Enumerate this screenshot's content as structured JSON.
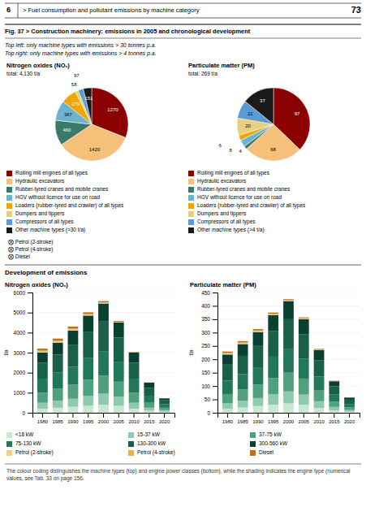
{
  "header": [
    "6",
    "> Fuel consumption and pollutant emissions by machine category",
    "73"
  ],
  "title": "Fig. 37   > Construction machinery: emissions in 2005 and chronological development",
  "subtitle": [
    "Top left: only machine types with emissions > 30 tonnes p.a.",
    "Top right: only machine types with emissions > 4 tonnes p.a."
  ],
  "section_title": "Development of emissions",
  "footer": "The colour coding distinguishes the machine types (top) and engine power classes (bottom), while the shading indicates the engine type (numerical values, see Tab. 33 on page 156.",
  "chart_data": [
    {
      "type": "pie",
      "title": "Nitrogen oxides (NOₓ)",
      "subtitle": "total: 4,130 t/a",
      "categories": [
        "Rolling mill engines of all types",
        "Hydraulic excavators",
        "Rubber-tyred cranes and mobile cranes",
        "HGV without licence for use on road",
        "Loaders (rubber-tyred and crawler) of all types",
        "Dumpers and tippers",
        "Compressors of all types",
        "Other machine types (>30 t/a)"
      ],
      "values": [
        1270,
        1420,
        460,
        367,
        279,
        58,
        97,
        151
      ],
      "colors": [
        "#8b0000",
        "#f5c07a",
        "#3a7a6a",
        "#6db3d0",
        "#f0a500",
        "#e8d080",
        "#5b9bd5",
        "#1a1a1a"
      ],
      "data_labels": true,
      "legend": "bottom",
      "annotations": [
        "⨂ Petrol (2-stroke)",
        "⨂ Petrol (4-stroke)",
        "⨂ Diesel"
      ]
    },
    {
      "type": "pie",
      "title": "Particulate matter (PM)",
      "subtitle": "total: 269 t/a",
      "categories": [
        "Rolling mill engines of all types",
        "Hydraulic excavators",
        "Rubber-tyred cranes and mobile cranes",
        "HGV without licence for use on road",
        "Loaders (rubber-tyred and crawler) of all types",
        "Dumpers and tippers",
        "Compressors of all types",
        "Other machine types (>4 t/a)"
      ],
      "values": [
        97,
        68,
        4,
        8,
        6,
        20,
        21,
        37
      ],
      "colors": [
        "#8b0000",
        "#f5c07a",
        "#3a7a6a",
        "#6db3d0",
        "#f0a500",
        "#e8d080",
        "#5b9bd5",
        "#1a1a1a"
      ],
      "data_labels": true,
      "legend": "bottom"
    },
    {
      "type": "bar",
      "stacked": true,
      "title": "Nitrogen oxides (NOₓ)",
      "ylabel": "t/a",
      "categories": [
        "1980",
        "1985",
        "1990",
        "1995",
        "2000",
        "2005",
        "2010",
        "2015",
        "2020"
      ],
      "series": [
        {
          "name": "<18 kW",
          "color": "#c8e8d0",
          "values": [
            200,
            250,
            300,
            350,
            400,
            350,
            200,
            100,
            50
          ]
        },
        {
          "name": "15-37 kW",
          "color": "#90c8b0",
          "values": [
            300,
            350,
            400,
            500,
            550,
            450,
            300,
            150,
            80
          ]
        },
        {
          "name": "37-75 kW",
          "color": "#50a080",
          "values": [
            500,
            600,
            700,
            800,
            900,
            750,
            500,
            250,
            120
          ]
        },
        {
          "name": "75-130 kW",
          "color": "#207858",
          "values": [
            700,
            800,
            900,
            1100,
            1200,
            1000,
            700,
            350,
            170
          ]
        },
        {
          "name": "130-300 kW",
          "color": "#1a6048",
          "values": [
            800,
            900,
            1100,
            1300,
            1500,
            1200,
            800,
            400,
            200
          ]
        },
        {
          "name": "300-560 kW",
          "color": "#0a4030",
          "values": [
            500,
            600,
            700,
            800,
            900,
            750,
            500,
            250,
            100
          ]
        },
        {
          "name": "Petrol (2-stroke)",
          "color": "#f0d080",
          "values": [
            50,
            50,
            50,
            40,
            30,
            20,
            10,
            5,
            2
          ]
        },
        {
          "name": "Petrol (4-stroke)",
          "color": "#e8b040",
          "values": [
            50,
            50,
            50,
            40,
            30,
            20,
            10,
            5,
            2
          ]
        },
        {
          "name": "Diesel",
          "color": "#c07020",
          "values": [
            100,
            100,
            100,
            80,
            60,
            40,
            20,
            10,
            5
          ]
        }
      ],
      "ylim": [
        0,
        6000
      ],
      "yticks": [
        0,
        1000,
        2000,
        3000,
        4000,
        5000,
        6000
      ],
      "grid": true,
      "legend": "bottom"
    },
    {
      "type": "bar",
      "stacked": true,
      "title": "Particulate matter (PM)",
      "ylabel": "t/a",
      "categories": [
        "1980",
        "1985",
        "1990",
        "1995",
        "2000",
        "2005",
        "2010",
        "2015",
        "2020"
      ],
      "series": [
        {
          "color": "#c8e8d0",
          "values": [
            15,
            20,
            25,
            30,
            35,
            30,
            18,
            9,
            4
          ]
        },
        {
          "color": "#90c8b0",
          "values": [
            20,
            25,
            30,
            40,
            45,
            38,
            25,
            13,
            6
          ]
        },
        {
          "color": "#50a080",
          "values": [
            35,
            42,
            50,
            60,
            70,
            60,
            40,
            20,
            10
          ]
        },
        {
          "color": "#207858",
          "values": [
            50,
            58,
            65,
            80,
            90,
            75,
            52,
            26,
            13
          ]
        },
        {
          "color": "#1a6048",
          "values": [
            60,
            68,
            80,
            95,
            110,
            90,
            62,
            31,
            16
          ]
        },
        {
          "color": "#0a4030",
          "values": [
            38,
            44,
            52,
            60,
            68,
            57,
            38,
            19,
            8
          ]
        },
        {
          "color": "#f0d080",
          "values": [
            3,
            3,
            3,
            3,
            2,
            2,
            1,
            0.5,
            0.2
          ]
        },
        {
          "color": "#e8b040",
          "values": [
            3,
            3,
            3,
            3,
            2,
            2,
            1,
            0.5,
            0.2
          ]
        },
        {
          "color": "#c07020",
          "values": [
            5,
            5,
            5,
            4,
            3,
            3,
            2,
            1,
            0.5
          ]
        }
      ],
      "ylim": [
        0,
        450
      ],
      "yticks": [
        0,
        50,
        100,
        150,
        200,
        250,
        300,
        350,
        400,
        450
      ],
      "grid": true
    }
  ]
}
